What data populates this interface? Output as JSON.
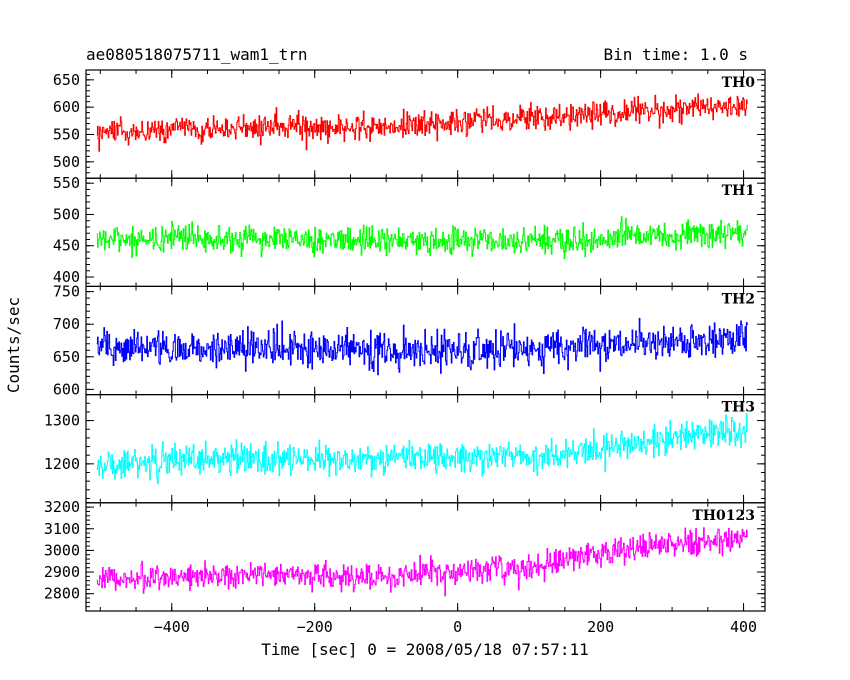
{
  "chart_data": {
    "type": "line",
    "title_left": "ae080518075711_wam1_trn",
    "title_right": "Bin time: 1.0 s",
    "xlabel": "Time [sec] 0 = 2008/05/18 07:57:11",
    "ylabel": "Counts/sec",
    "x_range": [
      -505,
      405
    ],
    "xlim": [
      -520,
      430
    ],
    "x_ticks": [
      -400,
      -200,
      0,
      200,
      400
    ],
    "x_tick_labels": [
      "−400",
      "−200",
      "0",
      "200",
      "400"
    ],
    "bin_time_s": 1.0,
    "grid": false,
    "panels": [
      {
        "name": "TH0",
        "color": "#ff0000",
        "ylim": [
          470,
          668
        ],
        "y_ticks": [
          500,
          550,
          600,
          650
        ],
        "y_tick_labels": [
          "500",
          "550",
          "600",
          "650"
        ],
        "trend": [
          [
            -505,
            555
          ],
          [
            -300,
            563
          ],
          [
            -100,
            565
          ],
          [
            100,
            580
          ],
          [
            300,
            598
          ],
          [
            405,
            605
          ]
        ],
        "noise": 24
      },
      {
        "name": "TH1",
        "color": "#00ff00",
        "ylim": [
          385,
          558
        ],
        "y_ticks": [
          400,
          450,
          500,
          550
        ],
        "y_tick_labels": [
          "400",
          "450",
          "500",
          "550"
        ],
        "trend": [
          [
            -505,
            460
          ],
          [
            -300,
            462
          ],
          [
            -100,
            458
          ],
          [
            100,
            457
          ],
          [
            300,
            465
          ],
          [
            405,
            470
          ]
        ],
        "noise": 22
      },
      {
        "name": "TH2",
        "color": "#0000ff",
        "ylim": [
          592,
          758
        ],
        "y_ticks": [
          600,
          650,
          700,
          750
        ],
        "y_tick_labels": [
          "600",
          "650",
          "700",
          "750"
        ],
        "trend": [
          [
            -505,
            665
          ],
          [
            -300,
            665
          ],
          [
            -100,
            658
          ],
          [
            100,
            662
          ],
          [
            300,
            672
          ],
          [
            405,
            680
          ]
        ],
        "noise": 28
      },
      {
        "name": "TH3",
        "color": "#00ffff",
        "ylim": [
          1110,
          1360
        ],
        "y_ticks": [
          1200,
          1300
        ],
        "y_tick_labels": [
          "1200",
          "1300"
        ],
        "trend": [
          [
            -505,
            1200
          ],
          [
            -300,
            1215
          ],
          [
            -100,
            1210
          ],
          [
            100,
            1215
          ],
          [
            250,
            1245
          ],
          [
            405,
            1280
          ]
        ],
        "noise": 36
      },
      {
        "name": "TH0123",
        "color": "#ff00ff",
        "ylim": [
          2720,
          3220
        ],
        "y_ticks": [
          2800,
          2900,
          3000,
          3100,
          3200
        ],
        "y_tick_labels": [
          "2800",
          "2900",
          "3000",
          "3100",
          "3200"
        ],
        "trend": [
          [
            -505,
            2870
          ],
          [
            -300,
            2885
          ],
          [
            -100,
            2880
          ],
          [
            100,
            2925
          ],
          [
            250,
            3010
          ],
          [
            405,
            3060
          ]
        ],
        "noise": 62
      }
    ]
  }
}
